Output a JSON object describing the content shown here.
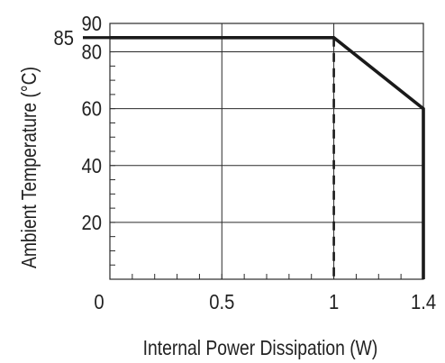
{
  "chart_data": {
    "type": "line",
    "xlabel": "Internal Power Dissipation (W)",
    "ylabel": "Ambient Temperature (°C)",
    "xlim": [
      0,
      1.4
    ],
    "ylim": [
      0,
      90
    ],
    "x_ticks": [
      {
        "value": 0,
        "label": "0"
      },
      {
        "value": 0.5,
        "label": "0.5"
      },
      {
        "value": 1,
        "label": "1"
      },
      {
        "value": 1.4,
        "label": "1.4"
      }
    ],
    "y_ticks": [
      {
        "value": 20,
        "label": "20"
      },
      {
        "value": 40,
        "label": "40"
      },
      {
        "value": 60,
        "label": "60"
      },
      {
        "value": 80,
        "label": "80"
      },
      {
        "value": 90,
        "label": "90"
      }
    ],
    "y_callout": {
      "value": 85,
      "label": "85"
    },
    "series": [
      {
        "style": "solid",
        "color": "#1a1a1a",
        "points": [
          {
            "x": 0,
            "y": 85
          },
          {
            "x": 1,
            "y": 85
          },
          {
            "x": 1.4,
            "y": 60
          },
          {
            "x": 1.4,
            "y": 0
          }
        ]
      },
      {
        "style": "dashed",
        "color": "#1a1a1a",
        "points": [
          {
            "x": 1,
            "y": 85
          },
          {
            "x": 1,
            "y": 0
          }
        ]
      }
    ],
    "grid": true,
    "minor_ticks": true,
    "legend": "none"
  }
}
